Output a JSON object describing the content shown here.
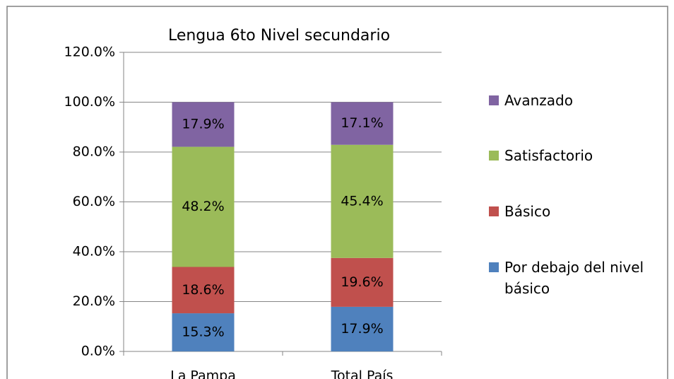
{
  "chart_data": {
    "type": "stacked_bar",
    "title": "Lengua 6to Nivel secundario",
    "categories": [
      "La Pampa",
      "Total País"
    ],
    "series": [
      {
        "name": "Por debajo del nivel básico",
        "color": "#4f81bd",
        "values": [
          15.3,
          17.9
        ],
        "value_labels": [
          "15.3%",
          "17.9%"
        ]
      },
      {
        "name": "Básico",
        "color": "#c0504d",
        "values": [
          18.6,
          19.6
        ],
        "value_labels": [
          "18.6%",
          "19.6%"
        ]
      },
      {
        "name": "Satisfactorio",
        "color": "#9bbb59",
        "values": [
          48.2,
          45.4
        ],
        "value_labels": [
          "48.2%",
          "45.4%"
        ]
      },
      {
        "name": "Avanzado",
        "color": "#8064a2",
        "values": [
          17.9,
          17.1
        ],
        "value_labels": [
          "17.9%",
          "17.1%"
        ]
      }
    ],
    "ylim": [
      0,
      120
    ],
    "yticks": [
      {
        "value": 0,
        "label": "0.0%"
      },
      {
        "value": 20,
        "label": "20.0%"
      },
      {
        "value": 40,
        "label": "40.0%"
      },
      {
        "value": 60,
        "label": "60.0%"
      },
      {
        "value": 80,
        "label": "80.0%"
      },
      {
        "value": 100,
        "label": "100.0%"
      },
      {
        "value": 120,
        "label": "120.0%"
      }
    ],
    "grid": true,
    "legend": "right"
  }
}
